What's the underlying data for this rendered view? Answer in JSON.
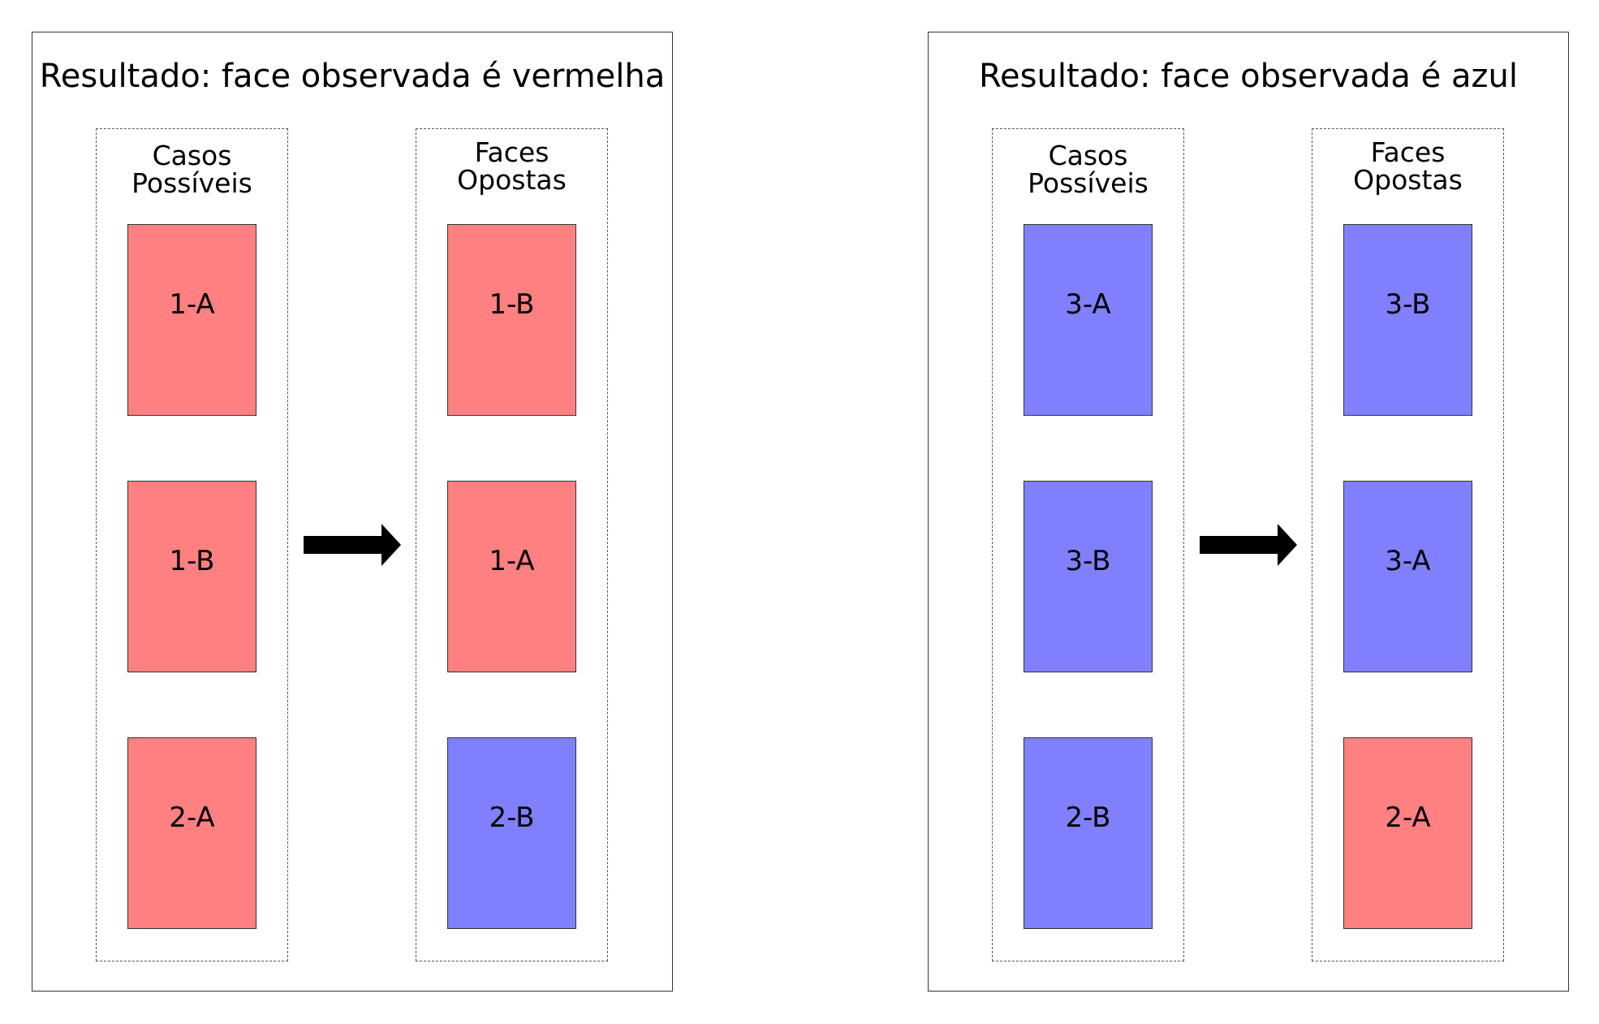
{
  "colors": {
    "red_face": "#ff8080",
    "blue_face": "#8080ff"
  },
  "panels": [
    {
      "title": "Resultado:  face observada é vermelha",
      "groups": [
        {
          "label_line1": "Casos",
          "label_line2": "Possíveis",
          "faces": [
            {
              "label": "1-A",
              "color": "red"
            },
            {
              "label": "1-B",
              "color": "red"
            },
            {
              "label": "2-A",
              "color": "red"
            }
          ]
        },
        {
          "label_line1": "Faces",
          "label_line2": "Opostas",
          "faces": [
            {
              "label": "1-B",
              "color": "red"
            },
            {
              "label": "1-A",
              "color": "red"
            },
            {
              "label": "2-B",
              "color": "blue"
            }
          ]
        }
      ]
    },
    {
      "title": "Resultado:  face observada é azul",
      "groups": [
        {
          "label_line1": "Casos",
          "label_line2": "Possíveis",
          "faces": [
            {
              "label": "3-A",
              "color": "blue"
            },
            {
              "label": "3-B",
              "color": "blue"
            },
            {
              "label": "2-B",
              "color": "blue"
            }
          ]
        },
        {
          "label_line1": "Faces",
          "label_line2": "Opostas",
          "faces": [
            {
              "label": "3-B",
              "color": "blue"
            },
            {
              "label": "3-A",
              "color": "blue"
            },
            {
              "label": "2-A",
              "color": "red"
            }
          ]
        }
      ]
    }
  ]
}
